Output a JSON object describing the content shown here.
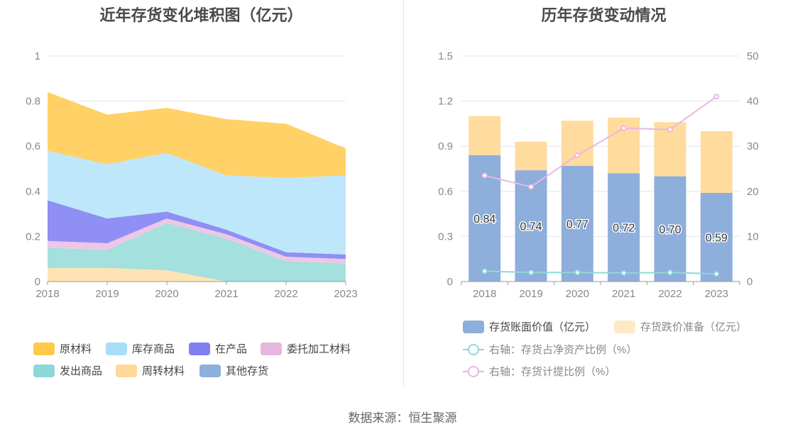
{
  "titles": {
    "left": "近年存货变化堆积图（亿元）",
    "right": "历年存货变动情况"
  },
  "footer": "数据来源：恒生聚源",
  "colors": {
    "原材料": "#ffd166",
    "库存商品": "#bfe7fb",
    "在产品": "#8f8ff5",
    "委托加工材料": "#eec7e6",
    "发出商品": "#a3e0de",
    "周转材料": "#ffe4b3",
    "其他存货": "#8eaedb",
    "bar_main": "#8eaedb",
    "bar_stack": "#ffdb9e",
    "line_net": "#8fd8da",
    "line_prov": "#e8b7e3"
  },
  "chart_data": [
    {
      "type": "area",
      "title": "近年存货变化堆积图（亿元）",
      "x": [
        "2018",
        "2019",
        "2020",
        "2021",
        "2022",
        "2023"
      ],
      "ylim": [
        0,
        1
      ],
      "yticks": [
        "0",
        "0.2",
        "0.4",
        "0.6",
        "0.8",
        "1"
      ],
      "stacked": true,
      "legend_position": "bottom",
      "grid": true,
      "legend": [
        "原材料",
        "库存商品",
        "在产品",
        "委托加工材料",
        "发出商品",
        "周转材料",
        "其他存货"
      ],
      "series": [
        {
          "name": "周转材料",
          "values": [
            0.06,
            0.06,
            0.05,
            0.0,
            0.0,
            0.0
          ]
        },
        {
          "name": "发出商品",
          "values": [
            0.09,
            0.08,
            0.21,
            0.19,
            0.09,
            0.08
          ]
        },
        {
          "name": "委托加工材料",
          "values": [
            0.03,
            0.03,
            0.02,
            0.02,
            0.02,
            0.02
          ]
        },
        {
          "name": "在产品",
          "values": [
            0.18,
            0.11,
            0.03,
            0.02,
            0.02,
            0.02
          ]
        },
        {
          "name": "库存商品",
          "values": [
            0.22,
            0.24,
            0.26,
            0.24,
            0.33,
            0.35
          ]
        },
        {
          "name": "原材料",
          "values": [
            0.26,
            0.22,
            0.2,
            0.25,
            0.24,
            0.12
          ]
        },
        {
          "name": "其他存货",
          "values": [
            0,
            0,
            0,
            0,
            0,
            0
          ]
        }
      ]
    },
    {
      "type": "bar",
      "title": "历年存货变动情况",
      "categories": [
        "2018",
        "2019",
        "2020",
        "2021",
        "2022",
        "2023"
      ],
      "ylim": [
        0,
        1.5
      ],
      "yticks": [
        "0",
        "0.3",
        "0.6",
        "0.9",
        "1.2",
        "1.5"
      ],
      "y2lim": [
        0,
        50
      ],
      "y2ticks": [
        "0",
        "10",
        "20",
        "30",
        "40",
        "50"
      ],
      "grid": true,
      "legend_position": "bottom",
      "series": [
        {
          "name": "存货账面价值（亿元）",
          "type": "bar",
          "values": [
            0.84,
            0.74,
            0.77,
            0.72,
            0.7,
            0.59
          ],
          "labels": [
            "0.84",
            "0.74",
            "0.77",
            "0.72",
            "0.70",
            "0.59"
          ]
        },
        {
          "name": "存货跌价准备（亿元）",
          "type": "bar",
          "stack": true,
          "values": [
            0.26,
            0.19,
            0.3,
            0.37,
            0.36,
            0.41
          ]
        },
        {
          "name": "右轴：存货占净资产比例（%）",
          "type": "line",
          "axis": "right",
          "values": [
            2.3,
            2.0,
            2.0,
            1.9,
            2.0,
            1.7
          ]
        },
        {
          "name": "右轴：存货计提比例（%）",
          "type": "line",
          "axis": "right",
          "values": [
            23.5,
            21.0,
            28.0,
            34.0,
            33.7,
            41.0
          ]
        }
      ]
    }
  ]
}
